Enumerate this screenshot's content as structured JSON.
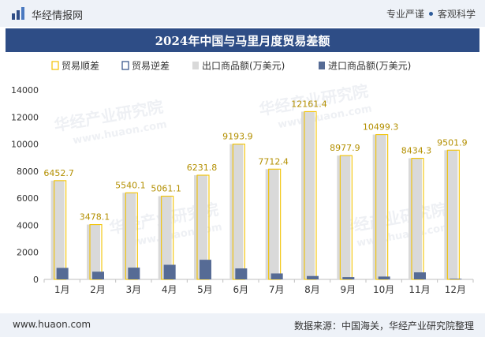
{
  "header": {
    "site_name": "华经情报网",
    "slogan_left": "专业严谨",
    "slogan_right": "客观科学"
  },
  "footer": {
    "url": "www.huaon.com",
    "source": "数据来源：中国海关，华经产业研究院整理"
  },
  "watermark": {
    "text_cn": "华经产业研究院",
    "text_url": "www.huaon.com"
  },
  "colors": {
    "surplus": "#f2c200",
    "deficit": "#2e4d86",
    "export": "#d9d9d9",
    "import": "#566b95",
    "title_bg": "#2e4d86"
  },
  "chart_data": {
    "type": "bar",
    "title": "2024年中国与马里月度贸易差额",
    "categories": [
      "1月",
      "2月",
      "3月",
      "4月",
      "5月",
      "6月",
      "7月",
      "8月",
      "9月",
      "10月",
      "11月",
      "12月"
    ],
    "legend": [
      "贸易顺差",
      "贸易逆差",
      "出口商品额(万美元)",
      "进口商品额(万美元)"
    ],
    "legend_position": "top",
    "ylim": [
      0,
      14000
    ],
    "yticks": [
      0,
      2000,
      4000,
      6000,
      8000,
      10000,
      12000,
      14000
    ],
    "series": [
      {
        "name": "贸易顺差",
        "values": [
          6452.7,
          3478.1,
          5540.1,
          5061.1,
          6231.8,
          9193.9,
          7712.4,
          12161.4,
          8977.9,
          10499.3,
          8434.3,
          9501.9
        ]
      },
      {
        "name": "出口商品额(万美元)",
        "values": [
          7300,
          4050,
          6400,
          6150,
          7700,
          10000,
          8150,
          12400,
          9150,
          10700,
          8950,
          9550
        ]
      },
      {
        "name": "进口商品额(万美元)",
        "values": [
          850,
          570,
          870,
          1080,
          1450,
          810,
          440,
          250,
          170,
          210,
          520,
          50
        ]
      }
    ],
    "data_labels": [
      "6452.7",
      "3478.1",
      "5540.1",
      "5061.1",
      "6231.8",
      "9193.9",
      "7712.4",
      "12161.4",
      "8977.9",
      "10499.3",
      "8434.3",
      "9501.9"
    ]
  }
}
